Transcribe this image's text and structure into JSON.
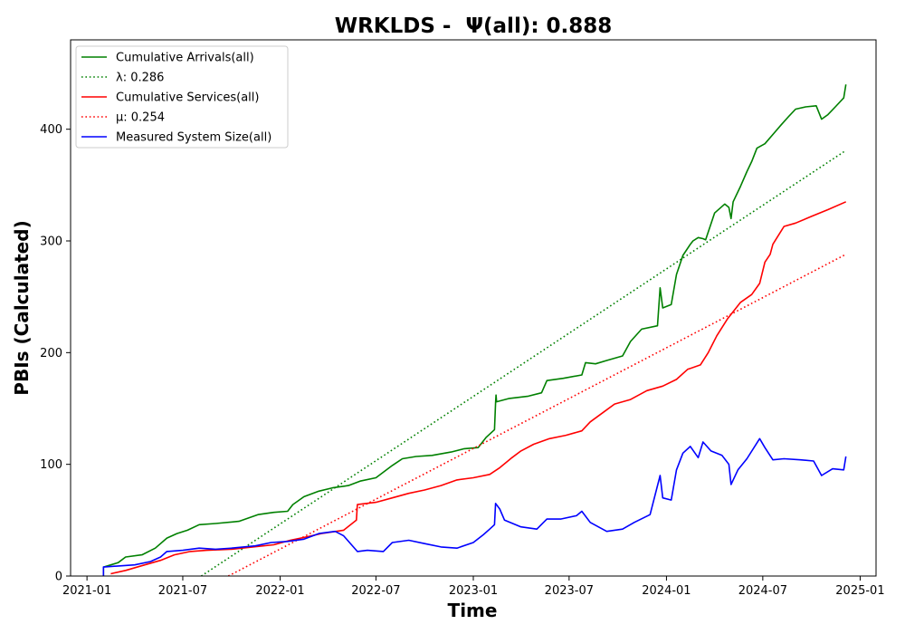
{
  "chart_data": {
    "type": "line",
    "title": "WRKLDS -  Ψ(all): 0.888",
    "xlabel": "Time",
    "ylabel": "PBIs (Calculated)",
    "xlim": [
      "2020-12-01",
      "2025-01-31"
    ],
    "ylim": [
      0,
      480
    ],
    "x_ticks": [
      "2021-01",
      "2021-07",
      "2022-01",
      "2022-07",
      "2023-01",
      "2023-07",
      "2024-01",
      "2024-07",
      "2025-01"
    ],
    "y_ticks": [
      0,
      100,
      200,
      300,
      400
    ],
    "grid": false,
    "legend_position": "upper-left",
    "series": [
      {
        "name": "Cumulative Arrivals(all)",
        "color": "#008000",
        "style": "solid",
        "points": [
          [
            "2021-02-01",
            0
          ],
          [
            "2021-02-01",
            8
          ],
          [
            "2021-03-01",
            12
          ],
          [
            "2021-03-15",
            17
          ],
          [
            "2021-04-15",
            19
          ],
          [
            "2021-05-10",
            25
          ],
          [
            "2021-06-01",
            34
          ],
          [
            "2021-06-20",
            38
          ],
          [
            "2021-07-10",
            41
          ],
          [
            "2021-08-01",
            46
          ],
          [
            "2021-09-01",
            47
          ],
          [
            "2021-10-15",
            49
          ],
          [
            "2021-11-20",
            55
          ],
          [
            "2021-12-20",
            57
          ],
          [
            "2022-01-15",
            58
          ],
          [
            "2022-01-25",
            64
          ],
          [
            "2022-02-15",
            71
          ],
          [
            "2022-03-15",
            76
          ],
          [
            "2022-04-10",
            79
          ],
          [
            "2022-05-10",
            81
          ],
          [
            "2022-06-01",
            85
          ],
          [
            "2022-07-01",
            88
          ],
          [
            "2022-08-01",
            99
          ],
          [
            "2022-08-20",
            105
          ],
          [
            "2022-09-15",
            107
          ],
          [
            "2022-10-15",
            108
          ],
          [
            "2022-11-20",
            111
          ],
          [
            "2022-12-15",
            114
          ],
          [
            "2023-01-10",
            115
          ],
          [
            "2023-01-25",
            124
          ],
          [
            "2023-02-10",
            131
          ],
          [
            "2023-02-12",
            155
          ],
          [
            "2023-02-13",
            162
          ],
          [
            "2023-02-14",
            156
          ],
          [
            "2023-03-10",
            159
          ],
          [
            "2023-04-15",
            161
          ],
          [
            "2023-05-10",
            164
          ],
          [
            "2023-05-20",
            175
          ],
          [
            "2023-06-20",
            177
          ],
          [
            "2023-07-25",
            180
          ],
          [
            "2023-08-01",
            191
          ],
          [
            "2023-08-20",
            190
          ],
          [
            "2023-09-10",
            193
          ],
          [
            "2023-10-10",
            197
          ],
          [
            "2023-10-25",
            210
          ],
          [
            "2023-11-15",
            221
          ],
          [
            "2023-12-15",
            224
          ],
          [
            "2023-12-20",
            258
          ],
          [
            "2023-12-25",
            240
          ],
          [
            "2024-01-10",
            243
          ],
          [
            "2024-01-20",
            270
          ],
          [
            "2024-02-01",
            287
          ],
          [
            "2024-02-15",
            297
          ],
          [
            "2024-02-20",
            300
          ],
          [
            "2024-03-01",
            303
          ],
          [
            "2024-03-10",
            302
          ],
          [
            "2024-03-15",
            301
          ],
          [
            "2024-04-01",
            325
          ],
          [
            "2024-04-20",
            333
          ],
          [
            "2024-04-28",
            330
          ],
          [
            "2024-05-02",
            320
          ],
          [
            "2024-05-06",
            335
          ],
          [
            "2024-05-20",
            349
          ],
          [
            "2024-06-01",
            362
          ],
          [
            "2024-06-10",
            371
          ],
          [
            "2024-06-20",
            383
          ],
          [
            "2024-07-05",
            387
          ],
          [
            "2024-07-25",
            398
          ],
          [
            "2024-08-05",
            404
          ],
          [
            "2024-08-20",
            412
          ],
          [
            "2024-09-01",
            418
          ],
          [
            "2024-09-20",
            420
          ],
          [
            "2024-10-10",
            421
          ],
          [
            "2024-10-20",
            409
          ],
          [
            "2024-11-01",
            413
          ],
          [
            "2024-11-15",
            420
          ],
          [
            "2024-12-01",
            428
          ],
          [
            "2024-12-05",
            440
          ]
        ]
      },
      {
        "name": "λ: 0.286",
        "color": "#008000",
        "style": "dotted",
        "points": [
          [
            "2021-08-05",
            0
          ],
          [
            "2024-12-05",
            381
          ]
        ]
      },
      {
        "name": "Cumulative Services(all)",
        "color": "#ff0000",
        "style": "solid",
        "points": [
          [
            "2021-02-15",
            2
          ],
          [
            "2021-03-15",
            5
          ],
          [
            "2021-04-20",
            10
          ],
          [
            "2021-05-20",
            14
          ],
          [
            "2021-06-15",
            19
          ],
          [
            "2021-07-15",
            22
          ],
          [
            "2021-08-15",
            23
          ],
          [
            "2021-10-01",
            24
          ],
          [
            "2021-11-10",
            26
          ],
          [
            "2021-12-20",
            28
          ],
          [
            "2022-01-20",
            32
          ],
          [
            "2022-02-20",
            35
          ],
          [
            "2022-03-20",
            38
          ],
          [
            "2022-05-01",
            41
          ],
          [
            "2022-05-25",
            50
          ],
          [
            "2022-05-27",
            64
          ],
          [
            "2022-07-01",
            66
          ],
          [
            "2022-08-01",
            70
          ],
          [
            "2022-09-01",
            74
          ],
          [
            "2022-10-01",
            77
          ],
          [
            "2022-11-01",
            81
          ],
          [
            "2022-12-01",
            86
          ],
          [
            "2023-01-01",
            88
          ],
          [
            "2023-02-01",
            91
          ],
          [
            "2023-02-20",
            97
          ],
          [
            "2023-03-15",
            106
          ],
          [
            "2023-04-01",
            112
          ],
          [
            "2023-04-25",
            118
          ],
          [
            "2023-05-25",
            123
          ],
          [
            "2023-06-25",
            126
          ],
          [
            "2023-07-25",
            130
          ],
          [
            "2023-08-10",
            138
          ],
          [
            "2023-09-05",
            147
          ],
          [
            "2023-09-25",
            154
          ],
          [
            "2023-10-25",
            158
          ],
          [
            "2023-11-25",
            166
          ],
          [
            "2023-12-25",
            170
          ],
          [
            "2024-01-20",
            176
          ],
          [
            "2024-02-10",
            185
          ],
          [
            "2024-03-05",
            189
          ],
          [
            "2024-03-20",
            200
          ],
          [
            "2024-04-05",
            215
          ],
          [
            "2024-04-25",
            230
          ],
          [
            "2024-05-20",
            245
          ],
          [
            "2024-06-10",
            252
          ],
          [
            "2024-06-25",
            262
          ],
          [
            "2024-07-05",
            281
          ],
          [
            "2024-07-15",
            288
          ],
          [
            "2024-07-20",
            297
          ],
          [
            "2024-08-10",
            313
          ],
          [
            "2024-09-01",
            316
          ],
          [
            "2024-10-01",
            322
          ],
          [
            "2024-11-01",
            328
          ],
          [
            "2024-12-05",
            335
          ]
        ]
      },
      {
        "name": "μ: 0.254",
        "color": "#ff0000",
        "style": "dotted",
        "points": [
          [
            "2021-09-25",
            0
          ],
          [
            "2024-12-05",
            288
          ]
        ]
      },
      {
        "name": "Measured System Size(all)",
        "color": "#0000ff",
        "style": "solid",
        "points": [
          [
            "2021-02-01",
            0
          ],
          [
            "2021-02-01",
            8
          ],
          [
            "2021-03-01",
            9
          ],
          [
            "2021-04-01",
            10
          ],
          [
            "2021-05-01",
            13
          ],
          [
            "2021-05-20",
            17
          ],
          [
            "2021-06-01",
            22
          ],
          [
            "2021-07-01",
            23
          ],
          [
            "2021-08-01",
            25
          ],
          [
            "2021-09-01",
            24
          ],
          [
            "2021-10-01",
            25
          ],
          [
            "2021-11-15",
            27
          ],
          [
            "2021-12-15",
            30
          ],
          [
            "2022-01-15",
            31
          ],
          [
            "2022-02-15",
            33
          ],
          [
            "2022-03-15",
            38
          ],
          [
            "2022-04-15",
            40
          ],
          [
            "2022-05-01",
            36
          ],
          [
            "2022-05-27",
            22
          ],
          [
            "2022-06-15",
            23
          ],
          [
            "2022-07-15",
            22
          ],
          [
            "2022-08-01",
            30
          ],
          [
            "2022-09-01",
            32
          ],
          [
            "2022-10-01",
            29
          ],
          [
            "2022-11-01",
            26
          ],
          [
            "2022-12-01",
            25
          ],
          [
            "2023-01-01",
            30
          ],
          [
            "2023-01-20",
            37
          ],
          [
            "2023-02-01",
            42
          ],
          [
            "2023-02-10",
            46
          ],
          [
            "2023-02-12",
            65
          ],
          [
            "2023-02-20",
            60
          ],
          [
            "2023-03-01",
            50
          ],
          [
            "2023-04-01",
            44
          ],
          [
            "2023-05-01",
            42
          ],
          [
            "2023-05-20",
            51
          ],
          [
            "2023-06-15",
            51
          ],
          [
            "2023-07-15",
            54
          ],
          [
            "2023-07-25",
            58
          ],
          [
            "2023-08-10",
            48
          ],
          [
            "2023-09-10",
            40
          ],
          [
            "2023-10-10",
            42
          ],
          [
            "2023-11-01",
            48
          ],
          [
            "2023-12-01",
            55
          ],
          [
            "2023-12-20",
            90
          ],
          [
            "2023-12-25",
            70
          ],
          [
            "2024-01-10",
            68
          ],
          [
            "2024-01-20",
            95
          ],
          [
            "2024-02-01",
            110
          ],
          [
            "2024-02-15",
            116
          ],
          [
            "2024-03-01",
            106
          ],
          [
            "2024-03-10",
            120
          ],
          [
            "2024-03-25",
            112
          ],
          [
            "2024-04-15",
            108
          ],
          [
            "2024-04-28",
            100
          ],
          [
            "2024-05-02",
            82
          ],
          [
            "2024-05-15",
            95
          ],
          [
            "2024-06-01",
            105
          ],
          [
            "2024-06-25",
            123
          ],
          [
            "2024-07-05",
            115
          ],
          [
            "2024-07-20",
            104
          ],
          [
            "2024-08-10",
            105
          ],
          [
            "2024-09-10",
            104
          ],
          [
            "2024-10-05",
            103
          ],
          [
            "2024-10-20",
            90
          ],
          [
            "2024-11-10",
            96
          ],
          [
            "2024-12-01",
            95
          ],
          [
            "2024-12-05",
            107
          ]
        ]
      }
    ]
  }
}
